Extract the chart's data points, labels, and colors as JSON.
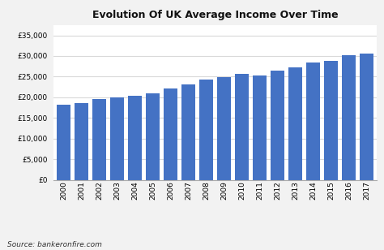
{
  "title": "Evolution Of UK Average Income Over Time",
  "years": [
    "2000",
    "2001",
    "2002",
    "2003",
    "2004",
    "2005",
    "2006",
    "2007",
    "2008",
    "2009",
    "2010",
    "2011",
    "2012",
    "2013",
    "2014",
    "2015",
    "2016",
    "2017"
  ],
  "values": [
    18200,
    18600,
    19600,
    20000,
    20300,
    21000,
    22200,
    23200,
    24400,
    24900,
    25600,
    25300,
    26500,
    27200,
    28400,
    28900,
    30100,
    30600
  ],
  "bar_color": "#4472c4",
  "ylim": [
    0,
    37500
  ],
  "yticks": [
    0,
    5000,
    10000,
    15000,
    20000,
    25000,
    30000,
    35000
  ],
  "source_text": "Source: bankeronfire.com",
  "bg_color": "#f2f2f2",
  "plot_bg_color": "#ffffff",
  "grid_color": "#d9d9d9"
}
